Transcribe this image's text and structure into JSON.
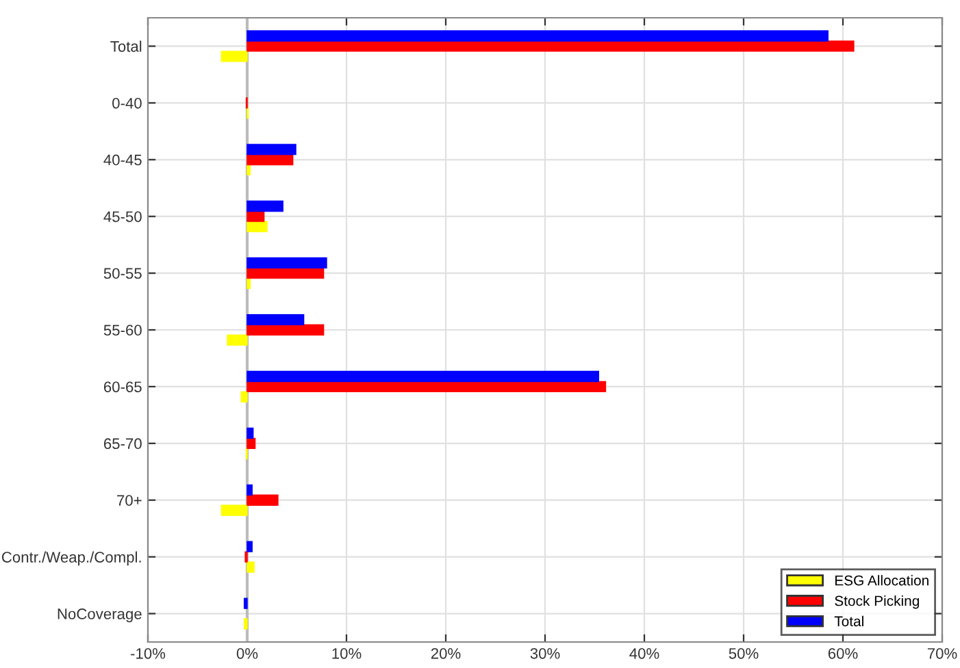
{
  "chart_data": {
    "type": "bar",
    "orientation": "horizontal",
    "categories": [
      "Total",
      "0-40",
      "40-45",
      "45-50",
      "50-55",
      "55-60",
      "60-65",
      "65-70",
      "70+",
      "Contr./Weap./Compl.",
      "NoCoverage"
    ],
    "series": [
      {
        "name": "ESG Allocation",
        "color": "#ffff00",
        "values": [
          -2.6,
          0.1,
          0.3,
          2.0,
          0.3,
          -2.0,
          -0.6,
          -0.1,
          -2.6,
          0.7,
          -0.3
        ]
      },
      {
        "name": "Stock Picking",
        "color": "#ff0000",
        "values": [
          61.1,
          -0.1,
          4.6,
          1.7,
          7.7,
          7.7,
          36.1,
          0.8,
          3.1,
          -0.2,
          null
        ]
      },
      {
        "name": "Total",
        "color": "#0000ff",
        "values": [
          58.5,
          null,
          4.9,
          3.6,
          8.0,
          5.7,
          35.4,
          0.6,
          0.5,
          0.5,
          -0.3
        ]
      }
    ],
    "xlim": [
      -10,
      70
    ],
    "xticks": [
      {
        "value": -10,
        "label": "-10%"
      },
      {
        "value": 0,
        "label": "0%"
      },
      {
        "value": 10,
        "label": "10%"
      },
      {
        "value": 20,
        "label": "20%"
      },
      {
        "value": 30,
        "label": "30%"
      },
      {
        "value": 40,
        "label": "40%"
      },
      {
        "value": 50,
        "label": "50%"
      },
      {
        "value": 60,
        "label": "60%"
      },
      {
        "value": 70,
        "label": "70%"
      }
    ],
    "grid": true,
    "legend": "bottom right"
  }
}
